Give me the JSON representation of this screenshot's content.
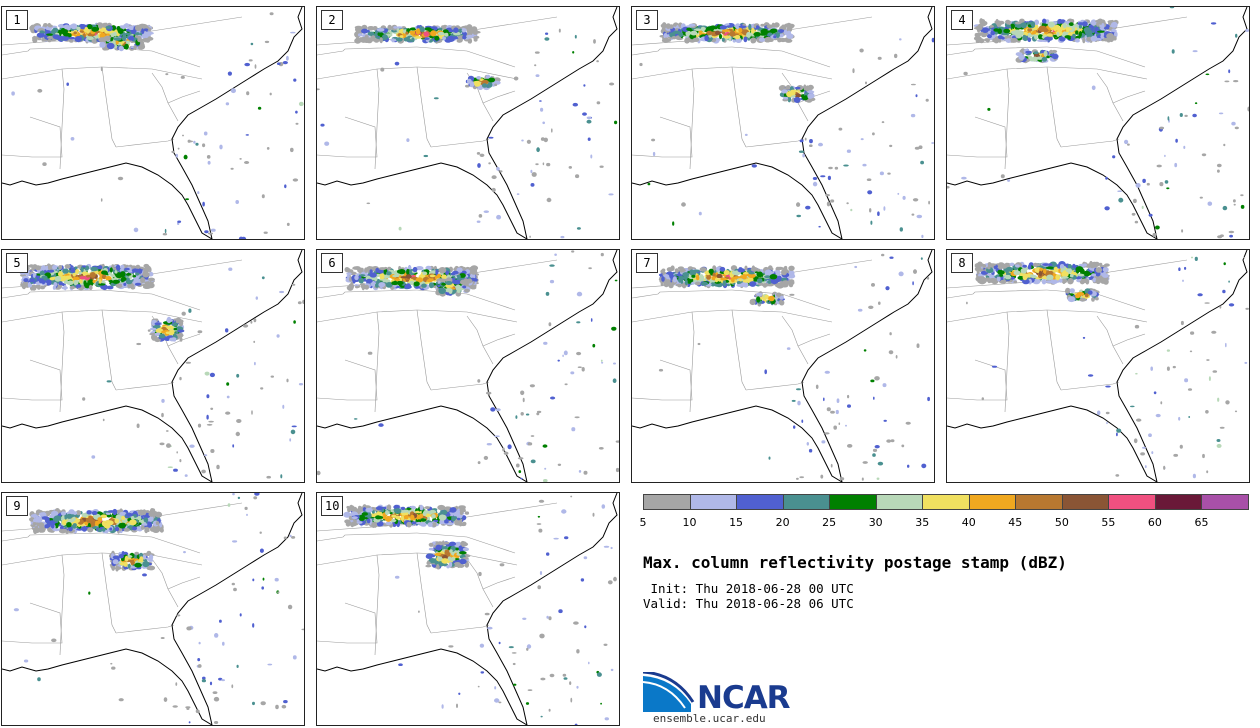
{
  "title": "Max. column reflectivity postage stamp (dBZ)",
  "init": " Init: Thu 2018-06-28 00 UTC",
  "valid": "Valid: Thu 2018-06-28 06 UTC",
  "logo": {
    "name": "NCAR",
    "url": "ensemble.ucar.edu"
  },
  "colorbar": {
    "ticks": [
      "5",
      "10",
      "15",
      "20",
      "25",
      "30",
      "35",
      "40",
      "45",
      "50",
      "55",
      "60",
      "65"
    ],
    "colors": [
      "#a6a6a6",
      "#b0b8e8",
      "#5060d0",
      "#4a9090",
      "#008000",
      "#b8d8b8",
      "#f0e060",
      "#f0a820",
      "#b87830",
      "#8a5535",
      "#f05080",
      "#6a1838",
      "#a850a8"
    ]
  },
  "members": [
    "1",
    "2",
    "3",
    "4",
    "5",
    "6",
    "7",
    "8",
    "9",
    "10"
  ]
}
